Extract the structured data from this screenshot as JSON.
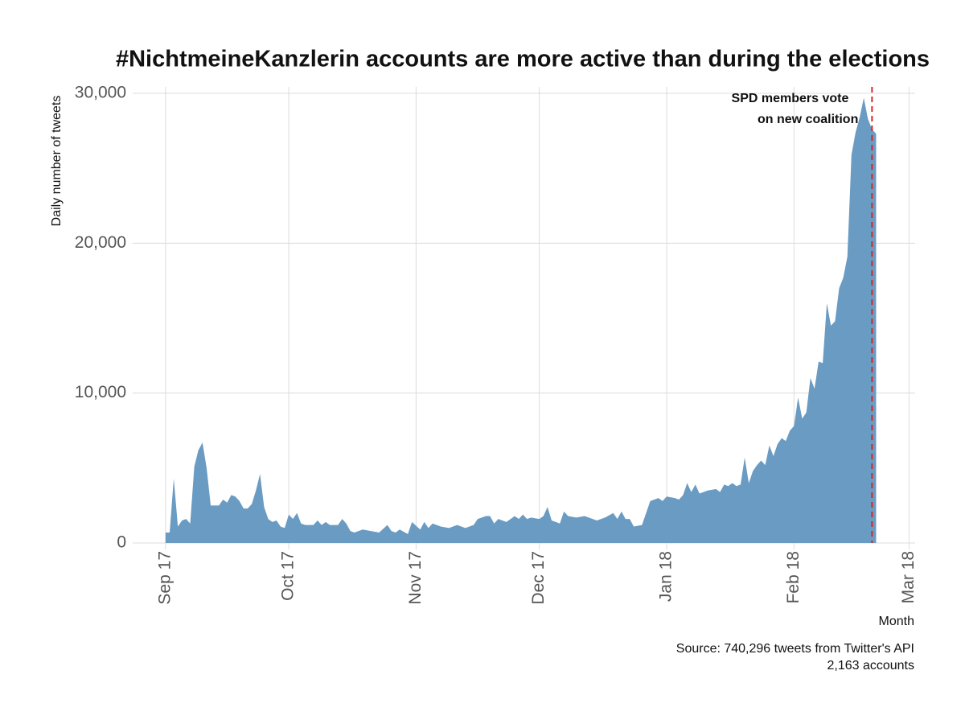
{
  "chart_data": {
    "type": "area",
    "title": "#NichtmeineKanzlerin accounts are more active than during the elections",
    "y_label": "Daily number of tweets",
    "x_label": "Month",
    "caption": [
      "Source: 740,296 tweets from Twitter's API",
      "2,163 accounts"
    ],
    "annotation": {
      "x": 172,
      "lines": [
        "SPD members vote",
        "on new coalition"
      ],
      "color": "#d62728"
    },
    "x": [
      0,
      1,
      2,
      3,
      4,
      5,
      6,
      7,
      8,
      9,
      10,
      11,
      13,
      14,
      15,
      16,
      17,
      18,
      19,
      20,
      21,
      22,
      23,
      24,
      25,
      26,
      27,
      28,
      29,
      30,
      31,
      32,
      33,
      34,
      36,
      37,
      38,
      39,
      40,
      42,
      43,
      44,
      45,
      46,
      48,
      50,
      52,
      54,
      55,
      56,
      57,
      59,
      60,
      62,
      63,
      64,
      65,
      67,
      69,
      71,
      73,
      75,
      76,
      78,
      79,
      80,
      81,
      83,
      85,
      86,
      87,
      88,
      89,
      91,
      92,
      93,
      94,
      96,
      97,
      98,
      100,
      102,
      104,
      105,
      107,
      109,
      110,
      111,
      112,
      113,
      114,
      116,
      118,
      120,
      121,
      122,
      124,
      125,
      126,
      127,
      128,
      129,
      130,
      132,
      134,
      135,
      136,
      137,
      138,
      139,
      140,
      141,
      142,
      143,
      144,
      145,
      146,
      147,
      148,
      149,
      150,
      151,
      152,
      153,
      154,
      155,
      156,
      157,
      158,
      159,
      160,
      161,
      162,
      163,
      164,
      165,
      166,
      167,
      168,
      169,
      170,
      171,
      172,
      173
    ],
    "series": [
      {
        "color": "#6a9bc3",
        "values": [
          700,
          700,
          4300,
          1100,
          1500,
          1600,
          1300,
          5100,
          6200,
          6700,
          5000,
          2500,
          2500,
          2900,
          2700,
          3200,
          3100,
          2800,
          2300,
          2300,
          2600,
          3500,
          4600,
          2400,
          1600,
          1400,
          1500,
          1100,
          1000,
          1900,
          1600,
          2000,
          1300,
          1200,
          1200,
          1500,
          1200,
          1400,
          1200,
          1200,
          1600,
          1300,
          800,
          700,
          900,
          800,
          700,
          1200,
          800,
          700,
          900,
          600,
          1400,
          900,
          1400,
          1000,
          1300,
          1100,
          1000,
          1200,
          1000,
          1200,
          1600,
          1800,
          1800,
          1300,
          1600,
          1400,
          1800,
          1600,
          1900,
          1600,
          1700,
          1600,
          1800,
          2400,
          1500,
          1300,
          2100,
          1800,
          1700,
          1800,
          1600,
          1500,
          1700,
          2000,
          1600,
          2100,
          1600,
          1600,
          1100,
          1200,
          2800,
          3000,
          2800,
          3100,
          3000,
          2900,
          3200,
          4000,
          3400,
          3900,
          3300,
          3500,
          3600,
          3400,
          3900,
          3800,
          4000,
          3800,
          3900,
          5700,
          4000,
          4800,
          5200,
          5500,
          5200,
          6500,
          5800,
          6600,
          7000,
          6800,
          7500,
          7800,
          9700,
          8300,
          8700,
          11000,
          10300,
          12100,
          12000,
          16000,
          14500,
          14800,
          17000,
          17700,
          19100,
          25900,
          27400,
          28400,
          29700,
          28300,
          27600,
          27300
        ]
      }
    ],
    "xlim": [
      -8,
      182.5
    ],
    "xticks": [
      {
        "value": 0,
        "label": "Sep 17"
      },
      {
        "value": 30,
        "label": "Oct 17"
      },
      {
        "value": 61,
        "label": "Nov 17"
      },
      {
        "value": 91,
        "label": "Dec 17"
      },
      {
        "value": 122,
        "label": "Jan 18"
      },
      {
        "value": 153,
        "label": "Feb 18"
      },
      {
        "value": 181,
        "label": "Mar 18"
      }
    ],
    "ylim": [
      0,
      30000
    ],
    "yticks": [
      0,
      {
        "value": 10000,
        "label": "10,000"
      },
      {
        "value": 20000,
        "label": "20,000"
      },
      {
        "value": 30000,
        "label": "30,000"
      }
    ],
    "grid": true
  }
}
